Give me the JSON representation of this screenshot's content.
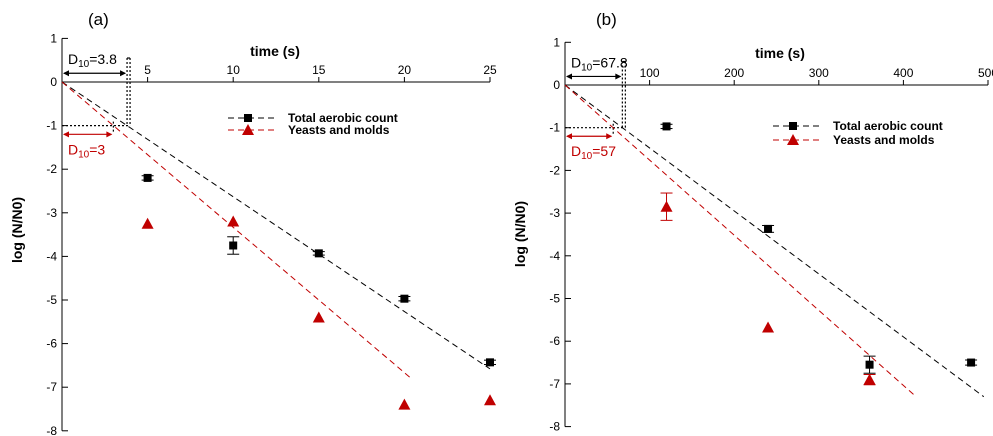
{
  "chart_data": [
    {
      "type": "scatter",
      "panel_label": "(a)",
      "xlabel": "time (s)",
      "ylabel": "log (N/N0)",
      "xlim": [
        0,
        25
      ],
      "ylim": [
        -8,
        1
      ],
      "x_ticks": [
        5,
        10,
        15,
        20,
        25
      ],
      "y_ticks": [
        1,
        0,
        -1,
        -2,
        -3,
        -4,
        -5,
        -6,
        -7,
        -8
      ],
      "x_axis_position": "top",
      "legend_position": "top-center",
      "series": [
        {
          "name": "Total aerobic count",
          "marker": "square",
          "color": "#000000",
          "points": [
            {
              "x": 5,
              "y": -2.2,
              "err": 0.05
            },
            {
              "x": 10,
              "y": -3.75,
              "err": 0.2
            },
            {
              "x": 15,
              "y": -3.93,
              "err": 0.04
            },
            {
              "x": 20,
              "y": -4.97,
              "err": 0.05
            },
            {
              "x": 25,
              "y": -6.43,
              "err": 0.05
            }
          ],
          "fit_line": {
            "x": [
              0,
              25
            ],
            "y": [
              0,
              -6.58
            ]
          }
        },
        {
          "name": "Yeasts and molds",
          "marker": "triangle",
          "color": "#c00000",
          "points": [
            {
              "x": 5,
              "y": -3.25,
              "err": 0
            },
            {
              "x": 10,
              "y": -3.2,
              "err": 0
            },
            {
              "x": 15,
              "y": -5.4,
              "err": 0
            },
            {
              "x": 20,
              "y": -7.4,
              "err": 0
            },
            {
              "x": 25,
              "y": -7.3,
              "err": 0
            }
          ],
          "fit_line": {
            "x": [
              0,
              20.4
            ],
            "y": [
              0,
              -6.8
            ]
          }
        }
      ],
      "annotations": {
        "d10_black": {
          "prefix": "D",
          "subscript": "10",
          "value": "=3.8",
          "x": 3.8
        },
        "d10_red": {
          "prefix": "D",
          "subscript": "10",
          "value": "=3",
          "x": 3
        }
      }
    },
    {
      "type": "scatter",
      "panel_label": "(b)",
      "xlabel": "time (s)",
      "ylabel": "log (N/N0)",
      "xlim": [
        0,
        500
      ],
      "ylim": [
        -8,
        1
      ],
      "x_ticks": [
        100,
        200,
        300,
        400,
        500
      ],
      "y_ticks": [
        1,
        0,
        -1,
        -2,
        -3,
        -4,
        -5,
        -6,
        -7,
        -8
      ],
      "x_axis_position": "top",
      "legend_position": "top-right",
      "series": [
        {
          "name": "Total aerobic count",
          "marker": "square",
          "color": "#000000",
          "points": [
            {
              "x": 120,
              "y": -0.97,
              "err": 0.05
            },
            {
              "x": 240,
              "y": -3.37,
              "err": 0.08
            },
            {
              "x": 360,
              "y": -6.55,
              "err": 0.2
            },
            {
              "x": 480,
              "y": -6.5,
              "err": 0.06
            }
          ],
          "fit_line": {
            "x": [
              0,
              495
            ],
            "y": [
              0,
              -7.3
            ]
          }
        },
        {
          "name": "Yeasts and molds",
          "marker": "triangle",
          "color": "#c00000",
          "points": [
            {
              "x": 120,
              "y": -2.85,
              "err": 0.32
            },
            {
              "x": 240,
              "y": -5.68,
              "err": 0
            },
            {
              "x": 360,
              "y": -6.9,
              "err": 0.12
            }
          ],
          "fit_line": {
            "x": [
              0,
              415
            ],
            "y": [
              0,
              -7.3
            ]
          }
        }
      ],
      "annotations": {
        "d10_black": {
          "prefix": "D",
          "subscript": "10",
          "value": "=67.8",
          "x": 67.8
        },
        "d10_red": {
          "prefix": "D",
          "subscript": "10",
          "value": "=57",
          "x": 57
        }
      }
    }
  ]
}
